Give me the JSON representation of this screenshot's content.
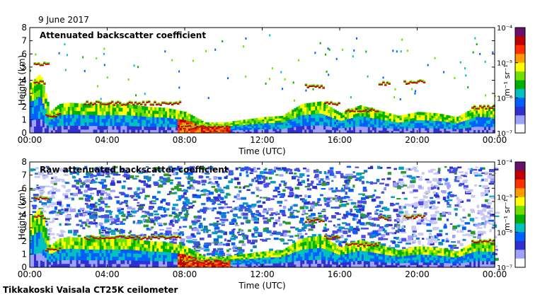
{
  "header": {
    "date": "9 June 2017"
  },
  "footer": {
    "instrument": "Tikkakoski Vaisala CT25K ceilometer"
  },
  "chart_data": [
    {
      "type": "heatmap",
      "title": "Attenuated backscatter coefficient",
      "xlabel": "Time (UTC)",
      "ylabel": "Height (km)",
      "x_ticks": [
        "00:00",
        "04:00",
        "08:00",
        "12:00",
        "16:00",
        "20:00",
        "00:00"
      ],
      "y_ticks": [
        "0",
        "1",
        "2",
        "3",
        "4",
        "5",
        "6",
        "7",
        "8"
      ],
      "xlim_hours": [
        0,
        24
      ],
      "ylim_km": [
        0,
        8
      ],
      "grid": false,
      "colorbar": {
        "label": "m⁻¹ sr⁻¹",
        "ticks": [
          "10⁻⁴",
          "10⁻⁵",
          "10⁻⁶",
          "10⁻⁷"
        ],
        "scale": "log",
        "colors": [
          "#6b0f6b",
          "#c00000",
          "#ff3000",
          "#ff9a00",
          "#ffff00",
          "#70e000",
          "#00b000",
          "#00c0c0",
          "#0060ff",
          "#3030d0",
          "#a0a0ff",
          "#ffffff"
        ]
      },
      "noise_background": false,
      "boundary_layer_top_km": [
        [
          0,
          3.8
        ],
        [
          0.5,
          4.5
        ],
        [
          0.8,
          2.8
        ],
        [
          1,
          1.6
        ],
        [
          1.5,
          2.2
        ],
        [
          2,
          2.3
        ],
        [
          3,
          2.2
        ],
        [
          4,
          2.2
        ],
        [
          5,
          2.2
        ],
        [
          6,
          2.0
        ],
        [
          7,
          1.9
        ],
        [
          8,
          1.6
        ],
        [
          9,
          0.8
        ],
        [
          10,
          0.8
        ],
        [
          11,
          1.0
        ],
        [
          12,
          1.2
        ],
        [
          13,
          1.3
        ],
        [
          14,
          2.2
        ],
        [
          15,
          2.4
        ],
        [
          16,
          1.5
        ],
        [
          17,
          2.1
        ],
        [
          18,
          1.7
        ],
        [
          19,
          1.3
        ],
        [
          20,
          1.6
        ],
        [
          21,
          1.5
        ],
        [
          22,
          1.2
        ],
        [
          23,
          2.0
        ],
        [
          24,
          1.9
        ]
      ],
      "cloud_layers": [
        {
          "start": 0.2,
          "end": 1.0,
          "height_km": 5.2
        },
        {
          "start": 0.2,
          "end": 0.8,
          "height_km": 3.8
        },
        {
          "start": 0.8,
          "end": 1.6,
          "height_km": 1.3
        },
        {
          "start": 2.8,
          "end": 7.8,
          "height_km": 2.2
        },
        {
          "start": 7.8,
          "end": 10.2,
          "height_km": 0.4
        },
        {
          "start": 14.2,
          "end": 15.2,
          "height_km": 3.5
        },
        {
          "start": 15.2,
          "end": 16.0,
          "height_km": 2.2
        },
        {
          "start": 16.3,
          "end": 18.0,
          "height_km": 1.7
        },
        {
          "start": 18.0,
          "end": 18.6,
          "height_km": 3.7
        },
        {
          "start": 19.3,
          "end": 20.4,
          "height_km": 3.8
        },
        {
          "start": 22.8,
          "end": 24.0,
          "height_km": 1.9
        }
      ]
    },
    {
      "type": "heatmap",
      "title": "Raw attenuated backscatter coefficient",
      "xlabel": "Time (UTC)",
      "ylabel": "Height (km)",
      "x_ticks": [
        "00:00",
        "04:00",
        "08:00",
        "12:00",
        "16:00",
        "20:00",
        "00:00"
      ],
      "y_ticks": [
        "0",
        "1",
        "2",
        "3",
        "4",
        "5",
        "6",
        "7",
        "8"
      ],
      "xlim_hours": [
        0,
        24
      ],
      "ylim_km": [
        0,
        8
      ],
      "grid": false,
      "colorbar": {
        "label": "m⁻¹ sr⁻¹",
        "ticks": [
          "10⁻⁴",
          "10⁻⁵",
          "10⁻⁶",
          "10⁻⁷"
        ],
        "scale": "log",
        "colors": [
          "#6b0f6b",
          "#c00000",
          "#ff3000",
          "#ff9a00",
          "#ffff00",
          "#70e000",
          "#00b000",
          "#00c0c0",
          "#0060ff",
          "#3030d0",
          "#a0a0ff",
          "#ffffff"
        ]
      },
      "noise_background": true,
      "boundary_layer_top_km": [
        [
          0,
          3.8
        ],
        [
          0.5,
          4.5
        ],
        [
          0.8,
          2.8
        ],
        [
          1,
          1.6
        ],
        [
          1.5,
          2.2
        ],
        [
          2,
          2.3
        ],
        [
          3,
          2.2
        ],
        [
          4,
          2.2
        ],
        [
          5,
          2.2
        ],
        [
          6,
          2.0
        ],
        [
          7,
          1.9
        ],
        [
          8,
          1.6
        ],
        [
          9,
          0.8
        ],
        [
          10,
          0.8
        ],
        [
          11,
          1.0
        ],
        [
          12,
          1.2
        ],
        [
          13,
          1.3
        ],
        [
          14,
          2.2
        ],
        [
          15,
          2.4
        ],
        [
          16,
          1.5
        ],
        [
          17,
          2.1
        ],
        [
          18,
          1.7
        ],
        [
          19,
          1.3
        ],
        [
          20,
          1.6
        ],
        [
          21,
          1.5
        ],
        [
          22,
          1.2
        ],
        [
          23,
          2.0
        ],
        [
          24,
          1.9
        ]
      ],
      "cloud_layers": [
        {
          "start": 0.2,
          "end": 1.0,
          "height_km": 5.2
        },
        {
          "start": 0.2,
          "end": 0.8,
          "height_km": 3.8
        },
        {
          "start": 0.8,
          "end": 1.6,
          "height_km": 1.3
        },
        {
          "start": 2.8,
          "end": 7.8,
          "height_km": 2.2
        },
        {
          "start": 7.8,
          "end": 10.2,
          "height_km": 0.4
        },
        {
          "start": 14.2,
          "end": 15.2,
          "height_km": 3.5
        },
        {
          "start": 15.2,
          "end": 16.0,
          "height_km": 2.2
        },
        {
          "start": 16.3,
          "end": 18.0,
          "height_km": 1.7
        },
        {
          "start": 18.0,
          "end": 18.6,
          "height_km": 3.7
        },
        {
          "start": 19.3,
          "end": 20.4,
          "height_km": 3.8
        },
        {
          "start": 22.8,
          "end": 24.0,
          "height_km": 1.9
        }
      ]
    }
  ]
}
